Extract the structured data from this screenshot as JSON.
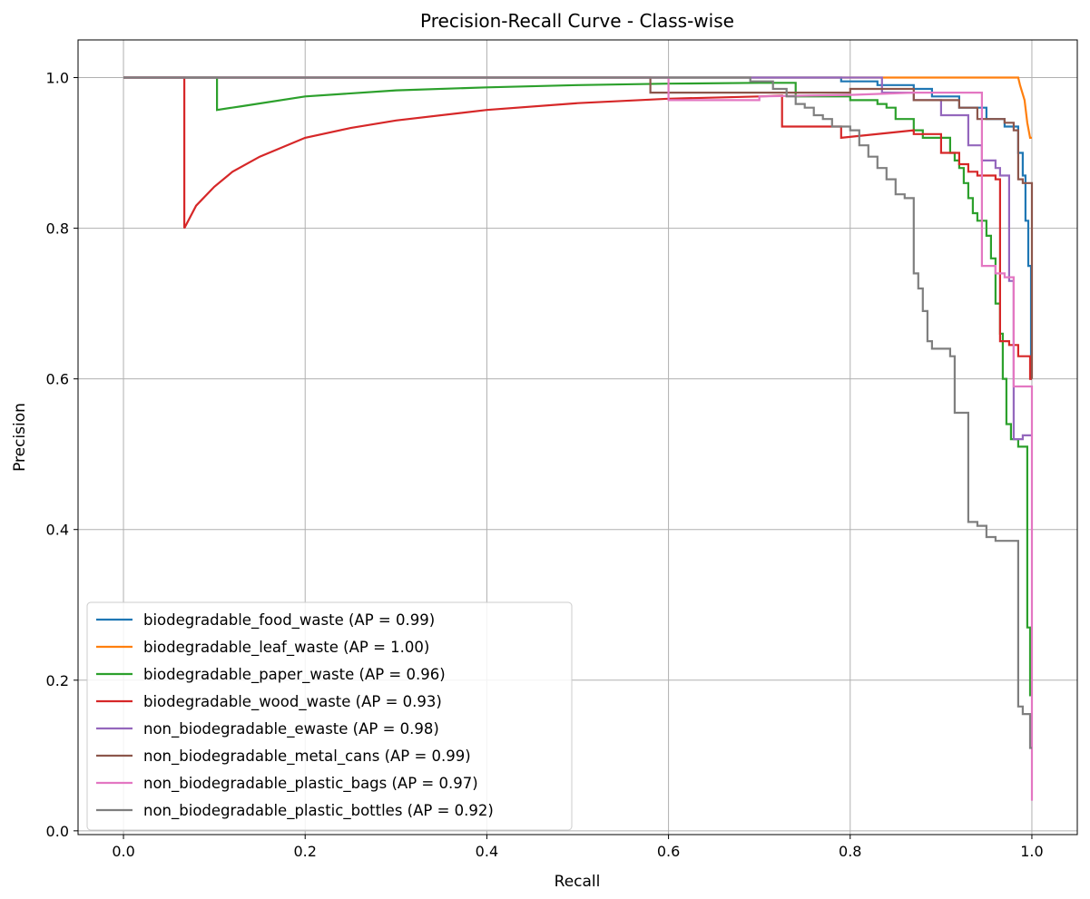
{
  "chart_data": {
    "type": "line",
    "title": "Precision-Recall Curve - Class-wise",
    "xlabel": "Recall",
    "ylabel": "Precision",
    "xlim": [
      -0.05,
      1.05
    ],
    "ylim": [
      -0.005,
      1.05
    ],
    "xticks": [
      0.0,
      0.2,
      0.4,
      0.6,
      0.8,
      1.0
    ],
    "xtick_labels": [
      "0.0",
      "0.2",
      "0.4",
      "0.6",
      "0.8",
      "1.0"
    ],
    "yticks": [
      0.0,
      0.2,
      0.4,
      0.6,
      0.8,
      1.0
    ],
    "ytick_labels": [
      "0.0",
      "0.2",
      "0.4",
      "0.6",
      "0.8",
      "1.0"
    ],
    "grid": true,
    "legend_position": "lower-left",
    "series": [
      {
        "name": "biodegradable_food_waste (AP = 0.99)",
        "color": "#1f77b4",
        "points": [
          [
            0,
            1.0
          ],
          [
            0.79,
            1.0
          ],
          [
            0.79,
            0.995
          ],
          [
            0.83,
            0.995
          ],
          [
            0.83,
            0.99
          ],
          [
            0.87,
            0.99
          ],
          [
            0.87,
            0.985
          ],
          [
            0.89,
            0.985
          ],
          [
            0.89,
            0.975
          ],
          [
            0.92,
            0.975
          ],
          [
            0.92,
            0.96
          ],
          [
            0.95,
            0.96
          ],
          [
            0.95,
            0.945
          ],
          [
            0.97,
            0.945
          ],
          [
            0.97,
            0.935
          ],
          [
            0.985,
            0.935
          ],
          [
            0.985,
            0.9
          ],
          [
            0.99,
            0.9
          ],
          [
            0.99,
            0.87
          ],
          [
            0.993,
            0.87
          ],
          [
            0.993,
            0.81
          ],
          [
            0.996,
            0.81
          ],
          [
            0.996,
            0.75
          ],
          [
            0.999,
            0.75
          ],
          [
            0.999,
            0.6
          ],
          [
            1.0,
            0.6
          ]
        ]
      },
      {
        "name": "biodegradable_leaf_waste (AP = 1.00)",
        "color": "#ff7f0e",
        "points": [
          [
            0,
            1.0
          ],
          [
            0.985,
            1.0
          ],
          [
            0.987,
            0.99
          ],
          [
            0.992,
            0.97
          ],
          [
            0.995,
            0.94
          ],
          [
            0.998,
            0.92
          ],
          [
            1.0,
            0.92
          ]
        ]
      },
      {
        "name": "biodegradable_paper_waste (AP = 0.96)",
        "color": "#2ca02c",
        "points": [
          [
            0,
            1.0
          ],
          [
            0.103,
            1.0
          ],
          [
            0.103,
            0.957
          ],
          [
            0.13,
            0.962
          ],
          [
            0.2,
            0.975
          ],
          [
            0.3,
            0.983
          ],
          [
            0.4,
            0.987
          ],
          [
            0.5,
            0.99
          ],
          [
            0.6,
            0.992
          ],
          [
            0.7,
            0.993
          ],
          [
            0.74,
            0.993
          ],
          [
            0.74,
            0.975
          ],
          [
            0.8,
            0.975
          ],
          [
            0.8,
            0.97
          ],
          [
            0.83,
            0.97
          ],
          [
            0.83,
            0.965
          ],
          [
            0.84,
            0.965
          ],
          [
            0.84,
            0.96
          ],
          [
            0.85,
            0.96
          ],
          [
            0.85,
            0.945
          ],
          [
            0.87,
            0.945
          ],
          [
            0.87,
            0.93
          ],
          [
            0.88,
            0.93
          ],
          [
            0.88,
            0.92
          ],
          [
            0.91,
            0.92
          ],
          [
            0.91,
            0.9
          ],
          [
            0.915,
            0.9
          ],
          [
            0.915,
            0.89
          ],
          [
            0.92,
            0.89
          ],
          [
            0.92,
            0.88
          ],
          [
            0.925,
            0.88
          ],
          [
            0.925,
            0.86
          ],
          [
            0.93,
            0.86
          ],
          [
            0.93,
            0.84
          ],
          [
            0.935,
            0.84
          ],
          [
            0.935,
            0.82
          ],
          [
            0.94,
            0.82
          ],
          [
            0.94,
            0.81
          ],
          [
            0.95,
            0.81
          ],
          [
            0.95,
            0.79
          ],
          [
            0.955,
            0.79
          ],
          [
            0.955,
            0.76
          ],
          [
            0.96,
            0.76
          ],
          [
            0.96,
            0.7
          ],
          [
            0.965,
            0.7
          ],
          [
            0.965,
            0.66
          ],
          [
            0.968,
            0.66
          ],
          [
            0.968,
            0.6
          ],
          [
            0.972,
            0.6
          ],
          [
            0.972,
            0.54
          ],
          [
            0.977,
            0.54
          ],
          [
            0.977,
            0.52
          ],
          [
            0.985,
            0.52
          ],
          [
            0.985,
            0.51
          ],
          [
            0.995,
            0.51
          ],
          [
            0.995,
            0.27
          ],
          [
            0.998,
            0.27
          ],
          [
            0.998,
            0.18
          ],
          [
            1.0,
            0.18
          ]
        ]
      },
      {
        "name": "biodegradable_wood_waste (AP = 0.93)",
        "color": "#d62728",
        "points": [
          [
            0,
            1.0
          ],
          [
            0.067,
            1.0
          ],
          [
            0.067,
            0.8
          ],
          [
            0.08,
            0.83
          ],
          [
            0.1,
            0.855
          ],
          [
            0.12,
            0.875
          ],
          [
            0.15,
            0.895
          ],
          [
            0.2,
            0.92
          ],
          [
            0.25,
            0.933
          ],
          [
            0.3,
            0.943
          ],
          [
            0.4,
            0.957
          ],
          [
            0.5,
            0.966
          ],
          [
            0.6,
            0.972
          ],
          [
            0.7,
            0.975
          ],
          [
            0.725,
            0.976
          ],
          [
            0.725,
            0.935
          ],
          [
            0.79,
            0.935
          ],
          [
            0.79,
            0.92
          ],
          [
            0.87,
            0.93
          ],
          [
            0.87,
            0.925
          ],
          [
            0.9,
            0.925
          ],
          [
            0.9,
            0.9
          ],
          [
            0.92,
            0.9
          ],
          [
            0.92,
            0.885
          ],
          [
            0.93,
            0.885
          ],
          [
            0.93,
            0.875
          ],
          [
            0.94,
            0.875
          ],
          [
            0.94,
            0.87
          ],
          [
            0.96,
            0.87
          ],
          [
            0.96,
            0.865
          ],
          [
            0.965,
            0.865
          ],
          [
            0.965,
            0.65
          ],
          [
            0.975,
            0.65
          ],
          [
            0.975,
            0.645
          ],
          [
            0.985,
            0.645
          ],
          [
            0.985,
            0.63
          ],
          [
            0.998,
            0.63
          ],
          [
            0.998,
            0.6
          ],
          [
            1.0,
            0.6
          ]
        ]
      },
      {
        "name": "non_biodegradable_ewaste (AP = 0.98)",
        "color": "#9467bd",
        "points": [
          [
            0,
            1.0
          ],
          [
            0.835,
            1.0
          ],
          [
            0.835,
            0.98
          ],
          [
            0.87,
            0.98
          ],
          [
            0.87,
            0.97
          ],
          [
            0.9,
            0.97
          ],
          [
            0.9,
            0.95
          ],
          [
            0.93,
            0.95
          ],
          [
            0.93,
            0.91
          ],
          [
            0.945,
            0.91
          ],
          [
            0.945,
            0.89
          ],
          [
            0.96,
            0.89
          ],
          [
            0.96,
            0.88
          ],
          [
            0.965,
            0.88
          ],
          [
            0.965,
            0.87
          ],
          [
            0.975,
            0.87
          ],
          [
            0.975,
            0.73
          ],
          [
            0.98,
            0.73
          ],
          [
            0.98,
            0.52
          ],
          [
            0.99,
            0.52
          ],
          [
            0.99,
            0.525
          ],
          [
            1.0,
            0.525
          ]
        ]
      },
      {
        "name": "non_biodegradable_metal_cans (AP = 0.99)",
        "color": "#8c564b",
        "points": [
          [
            0,
            1.0
          ],
          [
            0.58,
            1.0
          ],
          [
            0.58,
            0.98
          ],
          [
            0.8,
            0.98
          ],
          [
            0.8,
            0.985
          ],
          [
            0.87,
            0.985
          ],
          [
            0.87,
            0.97
          ],
          [
            0.92,
            0.97
          ],
          [
            0.92,
            0.96
          ],
          [
            0.94,
            0.96
          ],
          [
            0.94,
            0.945
          ],
          [
            0.97,
            0.945
          ],
          [
            0.97,
            0.94
          ],
          [
            0.98,
            0.94
          ],
          [
            0.98,
            0.93
          ],
          [
            0.985,
            0.93
          ],
          [
            0.985,
            0.865
          ],
          [
            0.99,
            0.865
          ],
          [
            0.99,
            0.86
          ],
          [
            1.0,
            0.86
          ],
          [
            1.0,
            0.6
          ]
        ]
      },
      {
        "name": "non_biodegradable_plastic_bags (AP = 0.97)",
        "color": "#e377c2",
        "points": [
          [
            0,
            1.0
          ],
          [
            0.6,
            1.0
          ],
          [
            0.6,
            0.97
          ],
          [
            0.7,
            0.97
          ],
          [
            0.7,
            0.975
          ],
          [
            0.8,
            0.977
          ],
          [
            0.87,
            0.98
          ],
          [
            0.945,
            0.98
          ],
          [
            0.945,
            0.75
          ],
          [
            0.96,
            0.75
          ],
          [
            0.96,
            0.74
          ],
          [
            0.97,
            0.74
          ],
          [
            0.97,
            0.735
          ],
          [
            0.98,
            0.735
          ],
          [
            0.98,
            0.59
          ],
          [
            1.0,
            0.59
          ],
          [
            1.0,
            0.04
          ]
        ]
      },
      {
        "name": "non_biodegradable_plastic_bottles (AP = 0.92)",
        "color": "#7f7f7f",
        "points": [
          [
            0,
            1.0
          ],
          [
            0.69,
            1.0
          ],
          [
            0.69,
            0.995
          ],
          [
            0.715,
            0.995
          ],
          [
            0.715,
            0.985
          ],
          [
            0.73,
            0.985
          ],
          [
            0.73,
            0.975
          ],
          [
            0.74,
            0.975
          ],
          [
            0.74,
            0.965
          ],
          [
            0.75,
            0.965
          ],
          [
            0.75,
            0.96
          ],
          [
            0.76,
            0.96
          ],
          [
            0.76,
            0.95
          ],
          [
            0.77,
            0.95
          ],
          [
            0.77,
            0.945
          ],
          [
            0.78,
            0.945
          ],
          [
            0.78,
            0.935
          ],
          [
            0.8,
            0.935
          ],
          [
            0.8,
            0.93
          ],
          [
            0.81,
            0.93
          ],
          [
            0.81,
            0.91
          ],
          [
            0.82,
            0.91
          ],
          [
            0.82,
            0.895
          ],
          [
            0.83,
            0.895
          ],
          [
            0.83,
            0.88
          ],
          [
            0.84,
            0.88
          ],
          [
            0.84,
            0.865
          ],
          [
            0.85,
            0.865
          ],
          [
            0.85,
            0.845
          ],
          [
            0.86,
            0.845
          ],
          [
            0.86,
            0.84
          ],
          [
            0.87,
            0.84
          ],
          [
            0.87,
            0.74
          ],
          [
            0.875,
            0.74
          ],
          [
            0.875,
            0.72
          ],
          [
            0.88,
            0.72
          ],
          [
            0.88,
            0.69
          ],
          [
            0.885,
            0.69
          ],
          [
            0.885,
            0.65
          ],
          [
            0.89,
            0.65
          ],
          [
            0.89,
            0.64
          ],
          [
            0.9,
            0.64
          ],
          [
            0.9,
            0.64
          ],
          [
            0.91,
            0.64
          ],
          [
            0.91,
            0.63
          ],
          [
            0.915,
            0.63
          ],
          [
            0.915,
            0.555
          ],
          [
            0.93,
            0.555
          ],
          [
            0.93,
            0.41
          ],
          [
            0.94,
            0.41
          ],
          [
            0.94,
            0.405
          ],
          [
            0.95,
            0.405
          ],
          [
            0.95,
            0.39
          ],
          [
            0.96,
            0.39
          ],
          [
            0.96,
            0.385
          ],
          [
            0.985,
            0.385
          ],
          [
            0.985,
            0.165
          ],
          [
            0.99,
            0.165
          ],
          [
            0.99,
            0.155
          ],
          [
            0.998,
            0.155
          ],
          [
            0.998,
            0.11
          ],
          [
            1.0,
            0.11
          ]
        ]
      }
    ]
  }
}
